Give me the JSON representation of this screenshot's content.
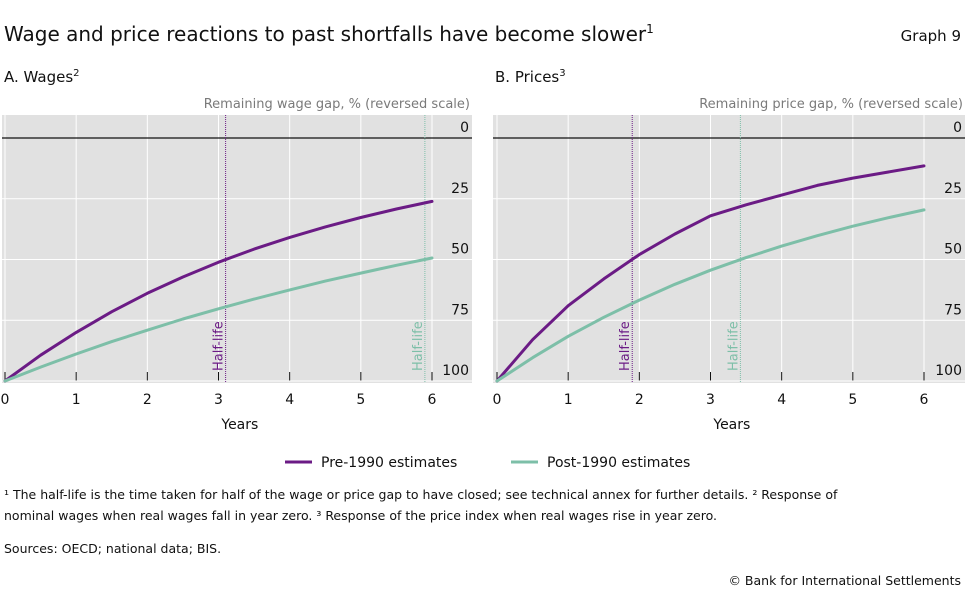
{
  "title": "Wage and price reactions to past shortfalls have become slower",
  "title_sup": "1",
  "graph_label": "Graph 9",
  "colors": {
    "pre": "#6b1b85",
    "post": "#7dbfa8",
    "plot_bg": "#e1e1e1",
    "axis_title": "#7a7a7a"
  },
  "legend": [
    {
      "label": "Pre-1990 estimates",
      "color_key": "pre"
    },
    {
      "label": "Post-1990 estimates",
      "color_key": "post"
    }
  ],
  "footnotes": {
    "line1": "¹ The half-life is the time taken for half of the wage or price gap to have closed; see technical annex for further details.   ² Response of",
    "line2": "nominal wages when real wages fall in year zero.   ³ Response of the price index when real wages rise in year zero.",
    "sources": "Sources: OECD; national data; BIS.",
    "copyright": "© Bank for International Settlements"
  },
  "chart_data": [
    {
      "type": "line",
      "title": "A. Wages",
      "title_sup": "2",
      "xlabel": "Years",
      "ylabel": "Remaining wage gap, % (reversed scale)",
      "xlim": [
        0,
        6
      ],
      "ylim": [
        100,
        0
      ],
      "y_reversed": true,
      "y_axis_side": "right",
      "xticks": [
        "0",
        "1",
        "2",
        "3",
        "4",
        "5",
        "6"
      ],
      "yticks": [
        "0",
        "25",
        "50",
        "75",
        "100"
      ],
      "grid": true,
      "x": [
        0,
        0.5,
        1,
        1.5,
        2,
        2.5,
        3,
        3.5,
        4,
        4.5,
        5,
        5.5,
        6
      ],
      "series": [
        {
          "name": "Pre-1990 estimates",
          "color_key": "pre",
          "values": [
            100,
            89.4,
            80.0,
            71.5,
            63.9,
            57.2,
            51.1,
            45.7,
            40.9,
            36.6,
            32.7,
            29.2,
            26.1
          ]
        },
        {
          "name": "Post-1990 estimates",
          "color_key": "post",
          "values": [
            100,
            94.3,
            88.9,
            83.8,
            79.1,
            74.5,
            70.3,
            66.3,
            62.5,
            58.9,
            55.6,
            52.4,
            49.4
          ]
        }
      ],
      "annotations": [
        {
          "text": "Half-life",
          "x": 3.1,
          "color_key": "pre"
        },
        {
          "text": "Half-life",
          "x": 5.9,
          "color_key": "post"
        }
      ]
    },
    {
      "type": "line",
      "title": "B. Prices",
      "title_sup": "3",
      "xlabel": "Years",
      "ylabel": "Remaining price gap, % (reversed scale)",
      "xlim": [
        0,
        6
      ],
      "ylim": [
        100,
        0
      ],
      "y_reversed": true,
      "y_axis_side": "right",
      "xticks": [
        "0",
        "1",
        "2",
        "3",
        "4",
        "5",
        "6"
      ],
      "yticks": [
        "0",
        "25",
        "50",
        "75",
        "100"
      ],
      "grid": true,
      "x": [
        0,
        0.5,
        1,
        1.5,
        2,
        2.5,
        3,
        3.5,
        4,
        4.5,
        5,
        5.5,
        6
      ],
      "series": [
        {
          "name": "Pre-1990 estimates",
          "color_key": "pre",
          "values": [
            100,
            83,
            69,
            58,
            48,
            39.5,
            32,
            27.5,
            23.5,
            19.5,
            16.5,
            14,
            11.5
          ]
        },
        {
          "name": "Post-1990 estimates",
          "color_key": "post",
          "values": [
            100,
            90.4,
            81.6,
            73.8,
            66.7,
            60.2,
            54.4,
            49.2,
            44.5,
            40.2,
            36.3,
            32.8,
            29.6
          ]
        }
      ],
      "annotations": [
        {
          "text": "Half-life",
          "x": 1.9,
          "color_key": "pre"
        },
        {
          "text": "Half-life",
          "x": 3.42,
          "color_key": "post"
        }
      ]
    }
  ]
}
